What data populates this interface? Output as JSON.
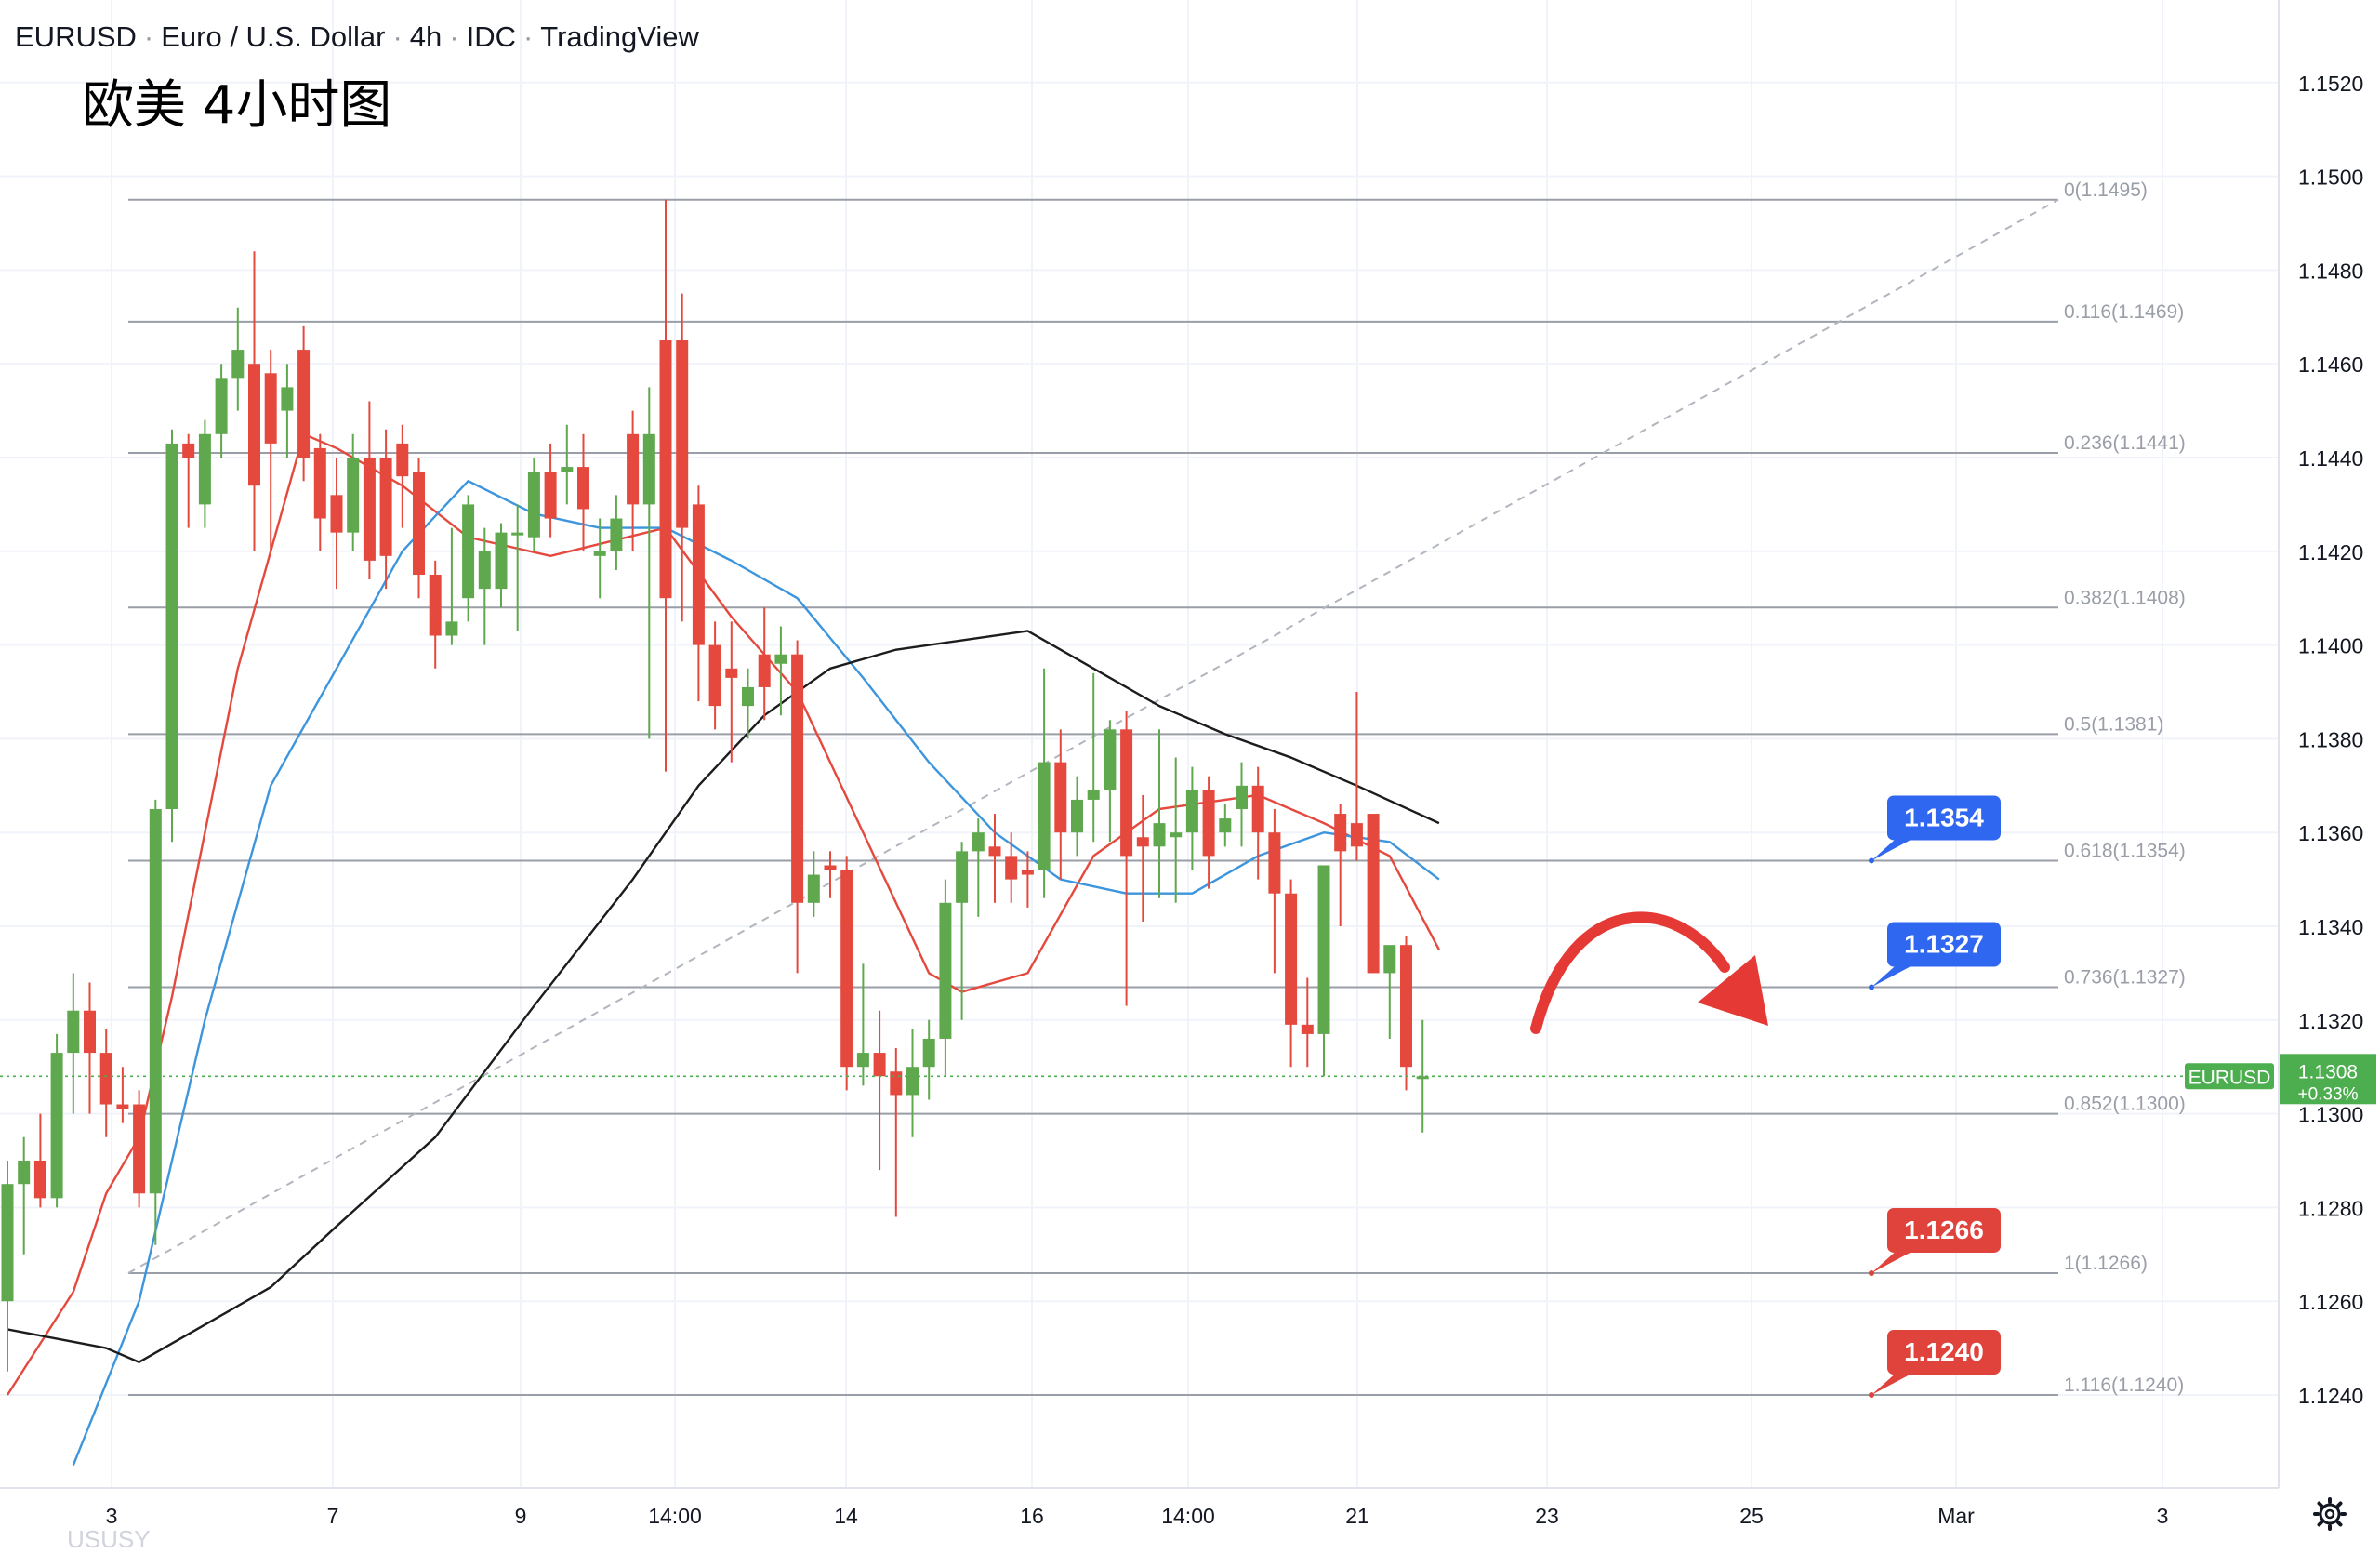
{
  "header": {
    "symbol": "EURUSD",
    "description": "Euro / U.S. Dollar",
    "interval": "4h",
    "exchange": "IDC",
    "brand": "TradingView"
  },
  "overlay_title": "欧美 4小时图",
  "watermark": "USUSY",
  "colors": {
    "up": "#5fa84d",
    "down": "#e5493e",
    "ma_fast": "#e5493e",
    "ma_mid": "#3d96dd",
    "ma_slow": "#1c1c1c",
    "fib_line": "#9a9ea7",
    "label_blue": "#2f67f0",
    "label_red": "#e0423c",
    "price_tag": "#4cae4f"
  },
  "chart_data": {
    "type": "candlestick",
    "symbol": "EURUSD",
    "interval": "4h",
    "y_axis": {
      "ticks": [
        "1.1520",
        "1.1500",
        "1.1480",
        "1.1460",
        "1.1440",
        "1.1420",
        "1.1400",
        "1.1380",
        "1.1360",
        "1.1340",
        "1.1320",
        "1.1300",
        "1.1280",
        "1.1260",
        "1.1240"
      ],
      "ylim": [
        1.122,
        1.153
      ]
    },
    "x_axis": {
      "ticks": [
        "3",
        "7",
        "9",
        "14:00",
        "14",
        "16",
        "14:00",
        "21",
        "23",
        "25",
        "Mar",
        "3"
      ]
    },
    "candles": [
      [
        1.126,
        1.129,
        1.1245,
        1.1285
      ],
      [
        1.1285,
        1.1295,
        1.127,
        1.129
      ],
      [
        1.129,
        1.13,
        1.128,
        1.1282
      ],
      [
        1.1282,
        1.1317,
        1.128,
        1.1313
      ],
      [
        1.1313,
        1.133,
        1.13,
        1.1322
      ],
      [
        1.1322,
        1.1328,
        1.13,
        1.1313
      ],
      [
        1.1313,
        1.1318,
        1.1295,
        1.1302
      ],
      [
        1.1302,
        1.131,
        1.1298,
        1.1301
      ],
      [
        1.1302,
        1.1305,
        1.128,
        1.1283
      ],
      [
        1.1283,
        1.1367,
        1.1272,
        1.1365
      ],
      [
        1.1365,
        1.1446,
        1.1358,
        1.1443
      ],
      [
        1.1443,
        1.1445,
        1.1425,
        1.144
      ],
      [
        1.143,
        1.1448,
        1.1425,
        1.1445
      ],
      [
        1.1445,
        1.146,
        1.144,
        1.1457
      ],
      [
        1.1457,
        1.1472,
        1.145,
        1.1463
      ],
      [
        1.146,
        1.1484,
        1.142,
        1.1434
      ],
      [
        1.1458,
        1.1463,
        1.142,
        1.1443
      ],
      [
        1.145,
        1.146,
        1.144,
        1.1455
      ],
      [
        1.1463,
        1.1468,
        1.1435,
        1.144
      ],
      [
        1.1442,
        1.1445,
        1.142,
        1.1427
      ],
      [
        1.1432,
        1.144,
        1.1412,
        1.1424
      ],
      [
        1.1424,
        1.1445,
        1.142,
        1.144
      ],
      [
        1.144,
        1.1452,
        1.1414,
        1.1418
      ],
      [
        1.144,
        1.1446,
        1.1412,
        1.1419
      ],
      [
        1.1443,
        1.1447,
        1.1425,
        1.1436
      ],
      [
        1.1437,
        1.144,
        1.141,
        1.1415
      ],
      [
        1.1415,
        1.1418,
        1.1395,
        1.1402
      ],
      [
        1.1402,
        1.1425,
        1.14,
        1.1405
      ],
      [
        1.141,
        1.1432,
        1.1405,
        1.143
      ],
      [
        1.1412,
        1.1425,
        1.14,
        1.142
      ],
      [
        1.1412,
        1.1426,
        1.1408,
        1.1424
      ],
      [
        1.1424,
        1.143,
        1.1403,
        1.1424
      ],
      [
        1.1423,
        1.144,
        1.142,
        1.1437
      ],
      [
        1.1437,
        1.1443,
        1.1423,
        1.1427
      ],
      [
        1.1437,
        1.1447,
        1.143,
        1.1438
      ],
      [
        1.1438,
        1.1445,
        1.142,
        1.1429
      ],
      [
        1.1419,
        1.1427,
        1.141,
        1.142
      ],
      [
        1.142,
        1.1432,
        1.1416,
        1.1427
      ],
      [
        1.1445,
        1.145,
        1.142,
        1.143
      ],
      [
        1.143,
        1.1455,
        1.138,
        1.1445
      ],
      [
        1.1465,
        1.1495,
        1.1373,
        1.141
      ],
      [
        1.1465,
        1.1475,
        1.1405,
        1.1425
      ],
      [
        1.143,
        1.1434,
        1.1388,
        1.14
      ],
      [
        1.14,
        1.1405,
        1.1382,
        1.1387
      ],
      [
        1.1395,
        1.1405,
        1.1375,
        1.1393
      ],
      [
        1.1387,
        1.1395,
        1.138,
        1.1391
      ],
      [
        1.1398,
        1.1408,
        1.1384,
        1.1391
      ],
      [
        1.1396,
        1.1404,
        1.1385,
        1.1398
      ],
      [
        1.1398,
        1.1401,
        1.133,
        1.1345
      ],
      [
        1.1345,
        1.1356,
        1.1342,
        1.1351
      ],
      [
        1.1353,
        1.1356,
        1.1346,
        1.1352
      ],
      [
        1.1352,
        1.1355,
        1.1305,
        1.131
      ],
      [
        1.131,
        1.1332,
        1.1306,
        1.1313
      ],
      [
        1.1313,
        1.1322,
        1.1288,
        1.1308
      ],
      [
        1.1309,
        1.1314,
        1.1278,
        1.1304
      ],
      [
        1.1304,
        1.1318,
        1.1295,
        1.131
      ],
      [
        1.131,
        1.132,
        1.1303,
        1.1316
      ],
      [
        1.1316,
        1.135,
        1.1308,
        1.1345
      ],
      [
        1.1345,
        1.1358,
        1.132,
        1.1356
      ],
      [
        1.1356,
        1.1363,
        1.1342,
        1.136
      ],
      [
        1.1357,
        1.1364,
        1.1345,
        1.1355
      ],
      [
        1.1355,
        1.136,
        1.1345,
        1.135
      ],
      [
        1.1352,
        1.1356,
        1.1344,
        1.1351
      ],
      [
        1.1352,
        1.1395,
        1.1346,
        1.1375
      ],
      [
        1.1375,
        1.1382,
        1.135,
        1.136
      ],
      [
        1.136,
        1.1372,
        1.1355,
        1.1367
      ],
      [
        1.1367,
        1.1394,
        1.1358,
        1.1369
      ],
      [
        1.1369,
        1.1384,
        1.1358,
        1.1382
      ],
      [
        1.1382,
        1.1386,
        1.1323,
        1.1355
      ],
      [
        1.1359,
        1.1368,
        1.1341,
        1.1357
      ],
      [
        1.1357,
        1.1382,
        1.1346,
        1.1362
      ],
      [
        1.1359,
        1.1376,
        1.1345,
        1.136
      ],
      [
        1.136,
        1.1374,
        1.1352,
        1.1369
      ],
      [
        1.1369,
        1.1372,
        1.1348,
        1.1355
      ],
      [
        1.136,
        1.1366,
        1.1357,
        1.1363
      ],
      [
        1.1365,
        1.1375,
        1.1357,
        1.137
      ],
      [
        1.137,
        1.1374,
        1.135,
        1.136
      ],
      [
        1.136,
        1.1365,
        1.133,
        1.1347
      ],
      [
        1.1347,
        1.135,
        1.131,
        1.1319
      ],
      [
        1.1319,
        1.1329,
        1.131,
        1.1317
      ],
      [
        1.1317,
        1.135,
        1.1308,
        1.1353
      ],
      [
        1.1364,
        1.1366,
        1.134,
        1.1356
      ],
      [
        1.1362,
        1.139,
        1.1354,
        1.1357
      ],
      [
        1.1364,
        1.1362,
        1.133,
        1.133
      ],
      [
        1.133,
        1.1335,
        1.1316,
        1.1336
      ],
      [
        1.1336,
        1.1338,
        1.1305,
        1.131
      ],
      [
        1.1308,
        1.132,
        1.1296,
        1.1308
      ]
    ],
    "moving_averages": [
      {
        "color_key": "ma_fast",
        "values": [
          [
            0,
            1.124
          ],
          [
            4,
            1.1262
          ],
          [
            6,
            1.1283
          ],
          [
            8,
            1.1295
          ],
          [
            10,
            1.1325
          ],
          [
            14,
            1.1395
          ],
          [
            18,
            1.1445
          ],
          [
            20,
            1.1442
          ],
          [
            24,
            1.1434
          ],
          [
            28,
            1.1423
          ],
          [
            33,
            1.1419
          ],
          [
            40,
            1.1425
          ],
          [
            44,
            1.1406
          ],
          [
            48,
            1.139
          ],
          [
            52,
            1.136
          ],
          [
            56,
            1.133
          ],
          [
            58,
            1.1326
          ],
          [
            62,
            1.133
          ],
          [
            66,
            1.1355
          ],
          [
            70,
            1.1365
          ],
          [
            76,
            1.1368
          ],
          [
            80,
            1.1362
          ],
          [
            84,
            1.1355
          ],
          [
            87,
            1.1335
          ]
        ]
      },
      {
        "color_key": "ma_mid",
        "values": [
          [
            4,
            1.1225
          ],
          [
            8,
            1.126
          ],
          [
            12,
            1.132
          ],
          [
            16,
            1.137
          ],
          [
            20,
            1.1395
          ],
          [
            24,
            1.142
          ],
          [
            28,
            1.1435
          ],
          [
            32,
            1.1428
          ],
          [
            36,
            1.1425
          ],
          [
            40,
            1.1425
          ],
          [
            44,
            1.1418
          ],
          [
            48,
            1.141
          ],
          [
            52,
            1.1393
          ],
          [
            56,
            1.1375
          ],
          [
            60,
            1.136
          ],
          [
            64,
            1.135
          ],
          [
            68,
            1.1347
          ],
          [
            72,
            1.1347
          ],
          [
            76,
            1.1355
          ],
          [
            80,
            1.136
          ],
          [
            84,
            1.1358
          ],
          [
            87,
            1.135
          ]
        ]
      },
      {
        "color_key": "ma_slow",
        "values": [
          [
            0,
            1.1254
          ],
          [
            6,
            1.125
          ],
          [
            8,
            1.1247
          ],
          [
            12,
            1.1255
          ],
          [
            16,
            1.1263
          ],
          [
            20,
            1.1276
          ],
          [
            26,
            1.1295
          ],
          [
            32,
            1.1323
          ],
          [
            38,
            1.135
          ],
          [
            42,
            1.137
          ],
          [
            46,
            1.1385
          ],
          [
            50,
            1.1395
          ],
          [
            54,
            1.1399
          ],
          [
            58,
            1.1401
          ],
          [
            62,
            1.1403
          ],
          [
            66,
            1.1395
          ],
          [
            70,
            1.1387
          ],
          [
            74,
            1.1381
          ],
          [
            78,
            1.1376
          ],
          [
            82,
            1.137
          ],
          [
            87,
            1.1362
          ]
        ]
      }
    ],
    "fib_levels": [
      {
        "label": "0(1.1495)",
        "price": 1.1495
      },
      {
        "label": "0.116(1.1469)",
        "price": 1.1469
      },
      {
        "label": "0.236(1.1441)",
        "price": 1.1441
      },
      {
        "label": "0.382(1.1408)",
        "price": 1.1408
      },
      {
        "label": "0.5(1.1381)",
        "price": 1.1381
      },
      {
        "label": "0.618(1.1354)",
        "price": 1.1354
      },
      {
        "label": "0.736(1.1327)",
        "price": 1.1327
      },
      {
        "label": "0.852(1.1300)",
        "price": 1.13
      },
      {
        "label": "1(1.1266)",
        "price": 1.1266
      },
      {
        "label": "1.116(1.1240)",
        "price": 1.124
      }
    ],
    "price_labels": [
      {
        "text": "1.1354",
        "price": 1.1354,
        "color_key": "label_blue"
      },
      {
        "text": "1.1327",
        "price": 1.1327,
        "color_key": "label_blue"
      },
      {
        "text": "1.1266",
        "price": 1.1266,
        "color_key": "label_red"
      },
      {
        "text": "1.1240",
        "price": 1.124,
        "color_key": "label_red"
      }
    ],
    "current_price": {
      "symbol": "EURUSD",
      "price": "1.1308",
      "change": "+0.33%",
      "value": 1.1308
    },
    "annotation": "red curved arrow pointing down-right",
    "grid": true
  }
}
